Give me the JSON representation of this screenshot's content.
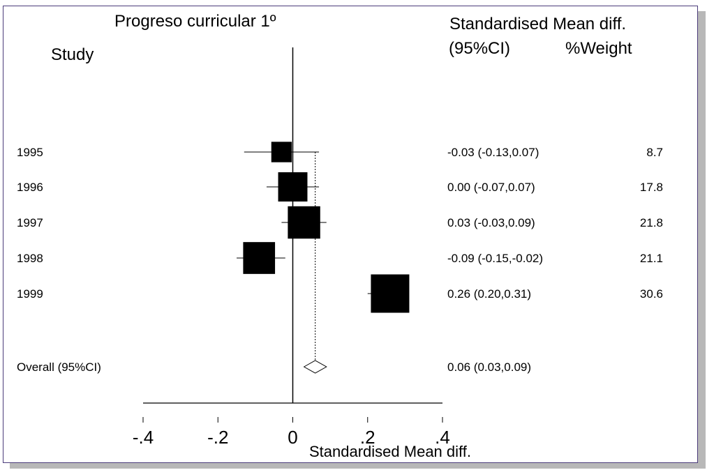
{
  "chart_data": {
    "type": "forest",
    "title": "Progreso curricular 1º",
    "study_header": "Study",
    "effect_header_line1": "Standardised Mean diff.",
    "effect_header_line2": "(95%CI)",
    "weight_header": "%Weight",
    "xlabel": "Standardised Mean diff.",
    "x_ticks": [
      -0.4,
      -0.2,
      0,
      0.2,
      0.4
    ],
    "x_tick_labels": [
      "-.4",
      "-.2",
      "0",
      ".2",
      ".4"
    ],
    "xlim": [
      -0.4,
      0.4
    ],
    "null_value": 0,
    "studies": [
      {
        "label": "1995",
        "estimate": -0.03,
        "ci_low": -0.13,
        "ci_high": 0.07,
        "weight": 8.7,
        "text": "-0.03 (-0.13,0.07)",
        "weight_text": "8.7"
      },
      {
        "label": "1996",
        "estimate": 0.0,
        "ci_low": -0.07,
        "ci_high": 0.07,
        "weight": 17.8,
        "text": "0.00 (-0.07,0.07)",
        "weight_text": "17.8"
      },
      {
        "label": "1997",
        "estimate": 0.03,
        "ci_low": -0.03,
        "ci_high": 0.09,
        "weight": 21.8,
        "text": "0.03 (-0.03,0.09)",
        "weight_text": "21.8"
      },
      {
        "label": "1998",
        "estimate": -0.09,
        "ci_low": -0.15,
        "ci_high": -0.02,
        "weight": 21.1,
        "text": "-0.09 (-0.15,-0.02)",
        "weight_text": "21.1"
      },
      {
        "label": "1999",
        "estimate": 0.26,
        "ci_low": 0.2,
        "ci_high": 0.31,
        "weight": 30.6,
        "text": "0.26 (0.20,0.31)",
        "weight_text": "30.6"
      }
    ],
    "overall": {
      "label": "Overall (95%CI)",
      "estimate": 0.06,
      "ci_low": 0.03,
      "ci_high": 0.09,
      "text": "0.06 (0.03,0.09)"
    }
  }
}
